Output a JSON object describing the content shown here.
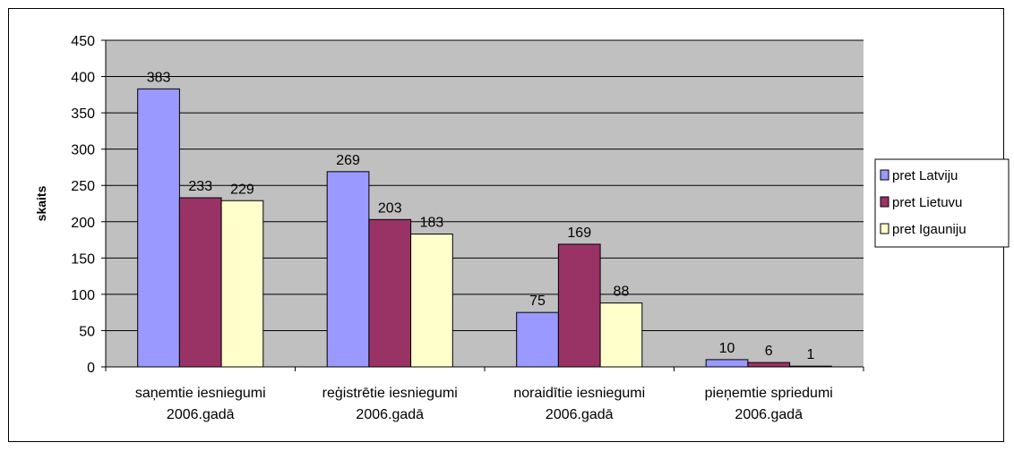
{
  "chart_data": {
    "type": "bar",
    "categories": [
      [
        "saņemtie iesniegumi",
        "2006.gadā"
      ],
      [
        "reģistrētie iesniegumi",
        "2006.gadā"
      ],
      [
        "noraidītie iesniegumi",
        "2006.gadā"
      ],
      [
        "pieņemtie spriedumi",
        "2006.gadā"
      ]
    ],
    "series": [
      {
        "name": "pret Latviju",
        "values": [
          383,
          269,
          75,
          10
        ],
        "color": "#9999ff"
      },
      {
        "name": "pret Lietuvu",
        "values": [
          233,
          203,
          169,
          6
        ],
        "color": "#993366"
      },
      {
        "name": "pret Igauniju",
        "values": [
          229,
          183,
          88,
          1
        ],
        "color": "#ffffcc"
      }
    ],
    "ylabel": "skaits",
    "xlabel": "",
    "ylim": [
      0,
      450
    ],
    "yticks": [
      0,
      50,
      100,
      150,
      200,
      250,
      300,
      350,
      400,
      450
    ],
    "grid": true,
    "plot_background": "#c0c0c0",
    "legend_position": "right"
  }
}
